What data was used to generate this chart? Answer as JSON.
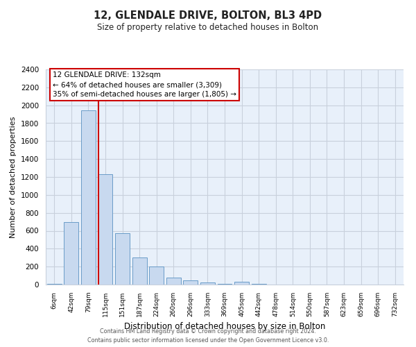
{
  "title": "12, GLENDALE DRIVE, BOLTON, BL3 4PD",
  "subtitle": "Size of property relative to detached houses in Bolton",
  "xlabel": "Distribution of detached houses by size in Bolton",
  "ylabel": "Number of detached properties",
  "bar_labels": [
    "6sqm",
    "42sqm",
    "79sqm",
    "115sqm",
    "151sqm",
    "187sqm",
    "224sqm",
    "260sqm",
    "296sqm",
    "333sqm",
    "369sqm",
    "405sqm",
    "442sqm",
    "478sqm",
    "514sqm",
    "550sqm",
    "587sqm",
    "623sqm",
    "659sqm",
    "696sqm",
    "732sqm"
  ],
  "bar_values": [
    10,
    700,
    1940,
    1230,
    570,
    300,
    200,
    80,
    45,
    25,
    5,
    30,
    5,
    3,
    2,
    2,
    1,
    0,
    0,
    0,
    0
  ],
  "bar_color": "#c8d9ef",
  "bar_edge_color": "#6a9cc8",
  "vline_index": 3,
  "vline_color": "#cc0000",
  "annotation_title": "12 GLENDALE DRIVE: 132sqm",
  "annotation_line1": "← 64% of detached houses are smaller (3,309)",
  "annotation_line2": "35% of semi-detached houses are larger (1,805) →",
  "annotation_box_color": "#ffffff",
  "annotation_box_edge": "#cc0000",
  "ylim": [
    0,
    2400
  ],
  "yticks": [
    0,
    200,
    400,
    600,
    800,
    1000,
    1200,
    1400,
    1600,
    1800,
    2000,
    2200,
    2400
  ],
  "footer1": "Contains HM Land Registry data © Crown copyright and database right 2024.",
  "footer2": "Contains public sector information licensed under the Open Government Licence v3.0.",
  "plot_bg_color": "#e8f0fa",
  "fig_bg_color": "#ffffff",
  "grid_color": "#c8d0dc"
}
